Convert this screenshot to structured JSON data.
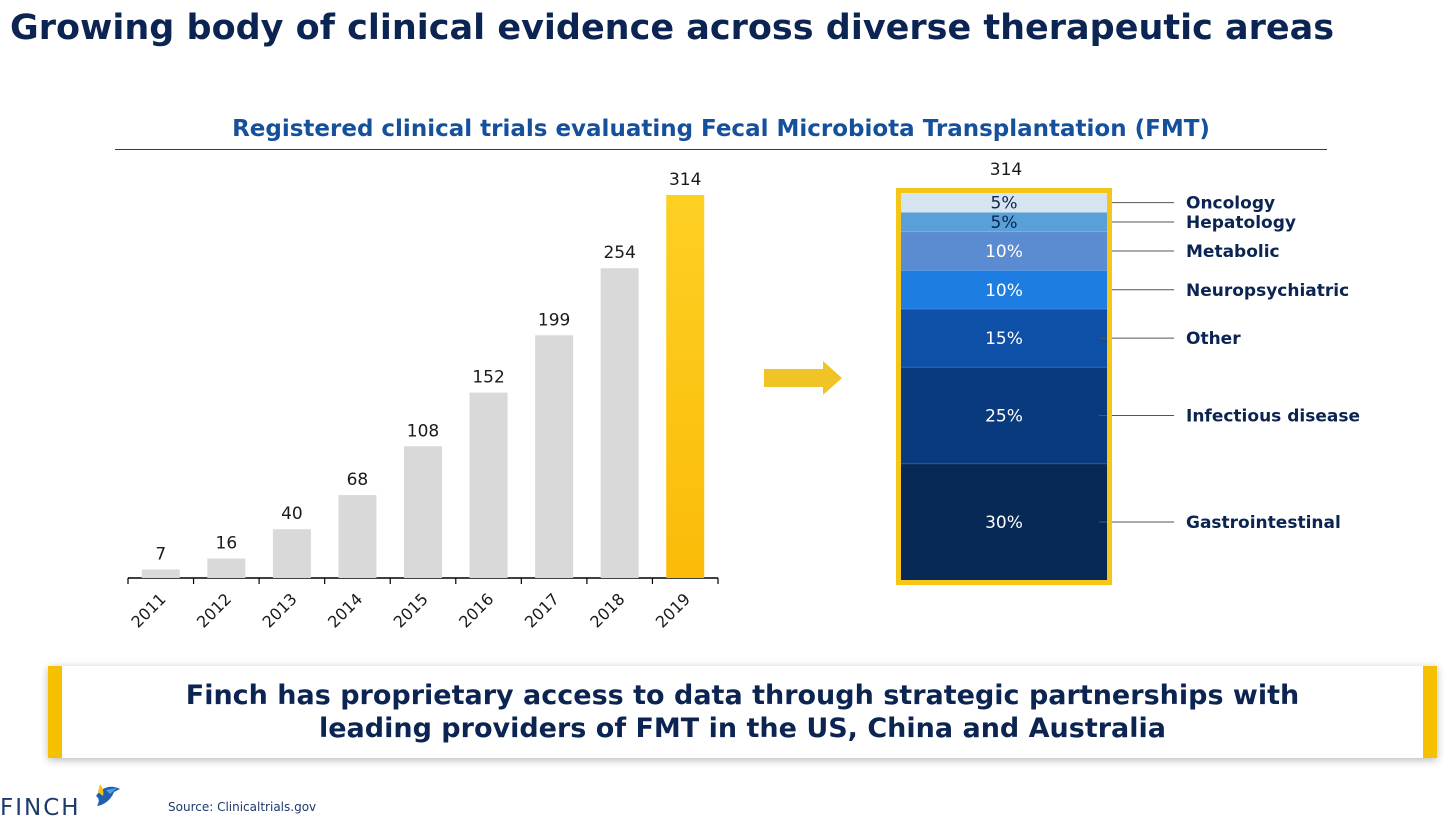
{
  "page": {
    "title": "Growing body of clinical evidence across diverse therapeutic areas",
    "chart_title": "Registered clinical trials evaluating Fecal Microbiota Transplantation (FMT)"
  },
  "chart_data": [
    {
      "type": "bar",
      "categories": [
        "2011",
        "2012",
        "2013",
        "2014",
        "2015",
        "2016",
        "2017",
        "2018",
        "2019"
      ],
      "values": [
        7,
        16,
        40,
        68,
        108,
        152,
        199,
        254,
        314
      ],
      "highlight_index": 8,
      "bar_color": "#d9d9d9",
      "highlight_color": "#fcc419",
      "ylim": [
        0,
        314
      ]
    },
    {
      "type": "bar",
      "stacked": true,
      "total": 314,
      "segments": [
        {
          "name": "Oncology",
          "label": "5%",
          "value": 5,
          "color": "#d6e4f0",
          "text_color": "#0b2452"
        },
        {
          "name": "Hepatology",
          "label": "5%",
          "value": 5,
          "color": "#5aa0d8",
          "text_color": "#0b2452"
        },
        {
          "name": "Metabolic",
          "label": "10%",
          "value": 10,
          "color": "#5b8bd0",
          "text_color": "#ffffff"
        },
        {
          "name": "Neuropsychiatric",
          "label": "10%",
          "value": 10,
          "color": "#1e7de0",
          "text_color": "#ffffff"
        },
        {
          "name": "Other",
          "label": "15%",
          "value": 15,
          "color": "#0e4fa8",
          "text_color": "#ffffff"
        },
        {
          "name": "Infectious disease",
          "label": "25%",
          "value": 25,
          "color": "#0a3a7e",
          "text_color": "#ffffff"
        },
        {
          "name": "Gastrointestinal",
          "label": "30%",
          "value": 30,
          "color": "#062a55",
          "text_color": "#ffffff"
        }
      ],
      "border_color": "#f5c518"
    }
  ],
  "callout": {
    "text": "Finch has proprietary access to data through strategic partnerships with\nleading providers of FMT in the US, China and Australia"
  },
  "logo": {
    "text": "FINCH",
    "icon": "bird-logo-icon"
  },
  "source": "Source: Clinicaltrials.gov",
  "arrow": {
    "icon": "right-arrow-icon",
    "color": "#f0c426"
  }
}
